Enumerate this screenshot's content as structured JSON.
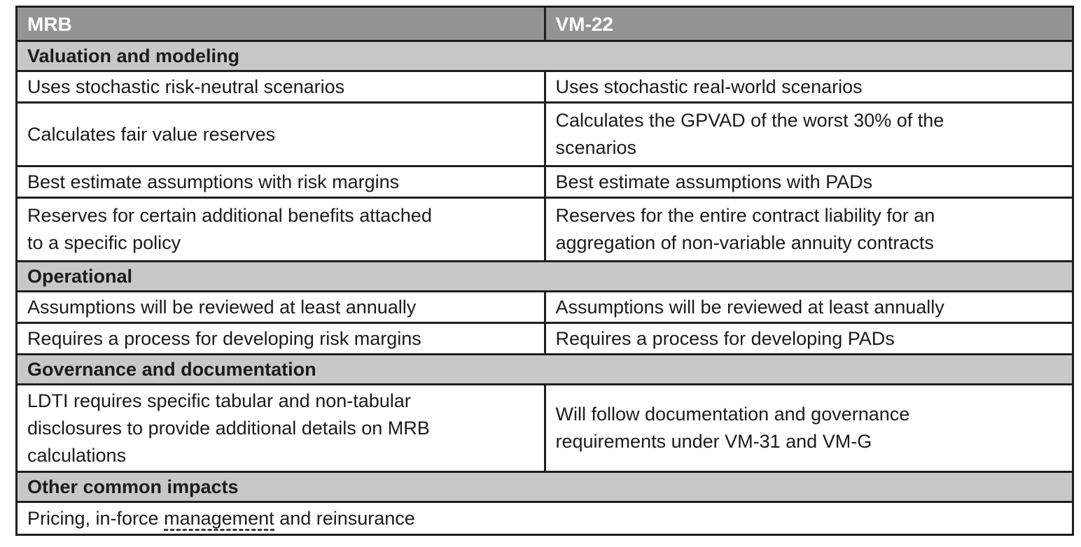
{
  "colors": {
    "page-bg": "#ffffff",
    "header-bg": "#949494",
    "header-text": "#ffffff",
    "section-bg": "#c8c8c8",
    "body-text": "#1b1b1b",
    "border": "#1f1f1f",
    "underline": "#3a3a3a"
  },
  "table": {
    "rows": [
      {
        "type": "column-header",
        "left": "MRB",
        "right": "VM-22"
      },
      {
        "type": "section",
        "label": "Valuation and modeling"
      },
      {
        "type": "data",
        "left": "Uses stochastic risk-neutral scenarios",
        "right": "Uses stochastic real-world scenarios"
      },
      {
        "type": "data",
        "left": "Calculates fair value reserves",
        "right": "Calculates the GPVAD of the worst 30% of the\nscenarios"
      },
      {
        "type": "data",
        "left": "Best estimate assumptions with risk margins",
        "right": "Best estimate assumptions with PADs"
      },
      {
        "type": "data",
        "left": "Reserves for certain additional benefits attached\nto a specific policy",
        "right": "Reserves for the entire contract liability for an\naggregation of non-variable annuity contracts"
      },
      {
        "type": "section",
        "label": "Operational"
      },
      {
        "type": "data",
        "left": "Assumptions will be reviewed at least annually",
        "right": "Assumptions will be reviewed at least annually"
      },
      {
        "type": "data",
        "left": "Requires a process for developing risk margins",
        "right": "Requires a process for developing PADs"
      },
      {
        "type": "section",
        "label": "Governance and documentation"
      },
      {
        "type": "data",
        "left": "LDTI requires specific tabular and non-tabular\ndisclosures to provide additional details on MRB\ncalculations",
        "right": "Will follow documentation and governance\nrequirements under VM-31 and VM-G"
      },
      {
        "type": "section",
        "label": "Other common impacts"
      },
      {
        "type": "full-row",
        "parts": {
          "pre": "Pricing, in-force ",
          "underlined": "management",
          "post": " and reinsurance"
        }
      }
    ]
  }
}
